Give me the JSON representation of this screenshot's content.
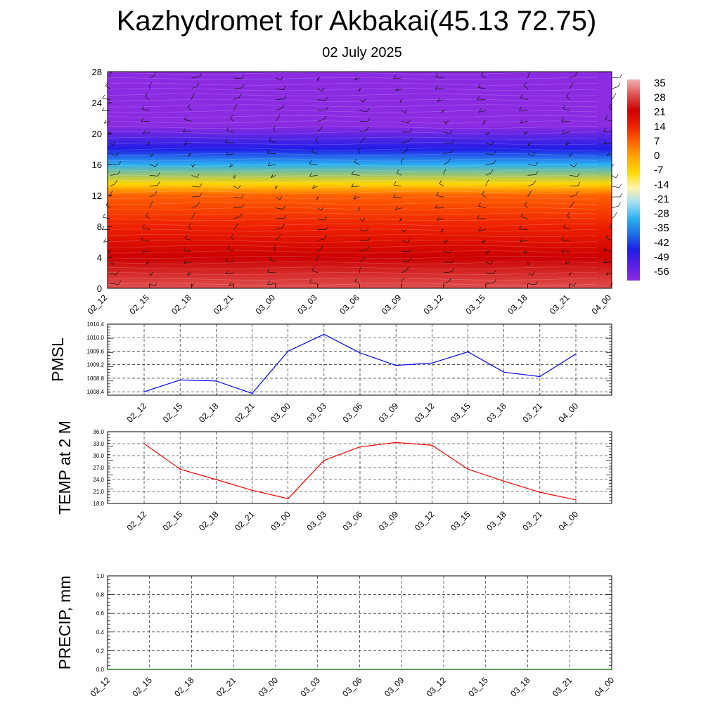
{
  "title": "Kazhydromet for Akbakai(45.13 72.75)",
  "subtitle": "02 July 2025",
  "colors": {
    "pmsl_line": "#0000ff",
    "temp_line": "#ff0000",
    "precip_line": "#006400",
    "scale": [
      "#8b2be2",
      "#5a1ee6",
      "#1e1ee6",
      "#1e6ee6",
      "#2ab0f0",
      "#a0dcf5",
      "#fff5aa",
      "#ffd700",
      "#ffa500",
      "#ff6000",
      "#ee2000",
      "#cc0000",
      "#e05050",
      "#f2b0b0"
    ]
  },
  "chart_data": [
    {
      "type": "heatmap",
      "title": "",
      "x_ticks": [
        "02_12",
        "02_15",
        "02_18",
        "02_21",
        "03_00",
        "03_03",
        "03_06",
        "03_09",
        "03_12",
        "03_15",
        "03_18",
        "03_21",
        "04_00"
      ],
      "y_ticks": [
        0,
        4,
        8,
        12,
        16,
        20,
        24,
        28
      ],
      "ylim": [
        0,
        28
      ],
      "colorbar_labels": [
        "35",
        "28",
        "21",
        "14",
        "7",
        "0",
        "-7",
        "-14",
        "-21",
        "-28",
        "-35",
        "-42",
        "-49",
        "-56"
      ],
      "colorbar_range": [
        -56,
        35
      ],
      "temperature_profile": [
        {
          "level": 0,
          "value": 30
        },
        {
          "level": 4,
          "value": 22
        },
        {
          "level": 8,
          "value": 14
        },
        {
          "level": 12,
          "value": 5
        },
        {
          "level": 13.5,
          "value": -7
        },
        {
          "level": 16,
          "value": -28
        },
        {
          "level": 18,
          "value": -42
        },
        {
          "level": 21,
          "value": -56
        },
        {
          "level": 28,
          "value": -56
        }
      ],
      "grid": false
    },
    {
      "type": "line",
      "ylabel": "PMSL",
      "x": [
        "02_12",
        "02_15",
        "02_18",
        "02_21",
        "03_00",
        "03_03",
        "03_06",
        "03_09",
        "03_12",
        "03_15",
        "03_18",
        "03_21",
        "04_00"
      ],
      "y_ticks": [
        "1008.4",
        "1008.8",
        "1009.2",
        "1009.6",
        "1010.0",
        "1010.4"
      ],
      "ylim": [
        1008.3,
        1010.4
      ],
      "series": [
        {
          "values": [
            1008.4,
            1008.75,
            1008.72,
            1008.35,
            1009.6,
            1010.1,
            1009.55,
            1009.18,
            1009.25,
            1009.58,
            1008.98,
            1008.85,
            1009.52
          ]
        }
      ],
      "grid": true
    },
    {
      "type": "line",
      "ylabel": "TEMP at 2 M",
      "x": [
        "02_12",
        "02_15",
        "02_18",
        "02_21",
        "03_00",
        "03_03",
        "03_06",
        "03_09",
        "03_12",
        "03_15",
        "03_18",
        "03_21",
        "04_00"
      ],
      "y_ticks": [
        "18.0",
        "21.0",
        "24.0",
        "27.0",
        "30.0",
        "33.0",
        "36.0"
      ],
      "ylim": [
        18,
        36
      ],
      "series": [
        {
          "values": [
            33.0,
            26.6,
            24.0,
            21.3,
            19.2,
            28.8,
            32.2,
            33.3,
            32.6,
            26.6,
            23.6,
            20.8,
            18.9
          ]
        }
      ],
      "grid": true
    },
    {
      "type": "line",
      "ylabel": "PRECIP, mm",
      "x": [
        "02_12",
        "02_15",
        "02_18",
        "02_21",
        "03_00",
        "03_03",
        "03_06",
        "03_09",
        "03_12",
        "03_15",
        "03_18",
        "03_21",
        "04_00"
      ],
      "y_ticks": [
        "0.0",
        "0.2",
        "0.4",
        "0.6",
        "0.8",
        "1.0"
      ],
      "ylim": [
        0,
        1
      ],
      "series": [
        {
          "values": [
            0,
            0,
            0,
            0,
            0,
            0,
            0,
            0,
            0,
            0,
            0,
            0,
            0
          ]
        }
      ],
      "grid": true
    }
  ]
}
